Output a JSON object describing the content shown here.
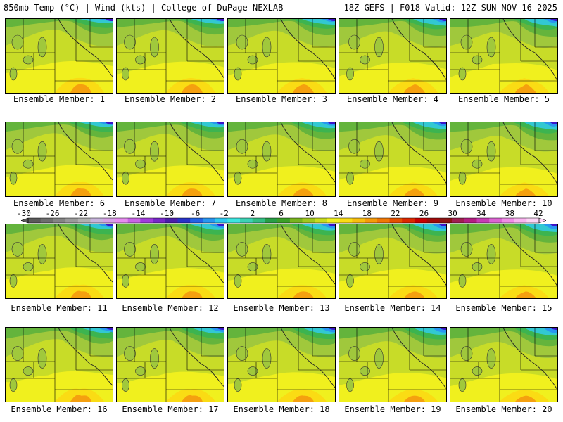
{
  "header": {
    "left": "850mb Temp (°C) | Wind (kts) | College of DuPage NEXLAB",
    "right": "18Z GEFS | F018 Valid: 12Z SUN NOV 16 2025"
  },
  "members": [
    {
      "label": "Ensemble Member: 1"
    },
    {
      "label": "Ensemble Member: 2"
    },
    {
      "label": "Ensemble Member: 3"
    },
    {
      "label": "Ensemble Member: 4"
    },
    {
      "label": "Ensemble Member: 5"
    },
    {
      "label": "Ensemble Member: 6"
    },
    {
      "label": "Ensemble Member: 7"
    },
    {
      "label": "Ensemble Member: 8"
    },
    {
      "label": "Ensemble Member: 9"
    },
    {
      "label": "Ensemble Member: 10"
    },
    {
      "label": "Ensemble Member: 11"
    },
    {
      "label": "Ensemble Member: 12"
    },
    {
      "label": "Ensemble Member: 13"
    },
    {
      "label": "Ensemble Member: 14"
    },
    {
      "label": "Ensemble Member: 15"
    },
    {
      "label": "Ensemble Member: 16"
    },
    {
      "label": "Ensemble Member: 17"
    },
    {
      "label": "Ensemble Member: 18"
    },
    {
      "label": "Ensemble Member: 19"
    },
    {
      "label": "Ensemble Member: 20"
    }
  ],
  "colorbar": {
    "labels": [
      "-30",
      "-26",
      "-22",
      "-18",
      "-14",
      "-10",
      "-6",
      "-2",
      "2",
      "6",
      "10",
      "14",
      "18",
      "22",
      "26",
      "30",
      "34",
      "38",
      "42"
    ],
    "colors": [
      "#5a5a5a",
      "#6e6e6e",
      "#848484",
      "#9a9a9a",
      "#b0b0b0",
      "#c8b4dc",
      "#d7a0e6",
      "#e68cf0",
      "#c864e6",
      "#a03cdc",
      "#7828c8",
      "#4b1eaa",
      "#2832c8",
      "#2364e6",
      "#2896f0",
      "#2ec8f0",
      "#3ce6e0",
      "#3cd2b4",
      "#32be82",
      "#289e46",
      "#3ca028",
      "#78b41e",
      "#a0c81e",
      "#c8dc1e",
      "#f0f01e",
      "#fadc14",
      "#f8be0f",
      "#f59b0a",
      "#f07805",
      "#e65000",
      "#dc2800",
      "#c80000",
      "#a00a0a",
      "#8c1414",
      "#a01e50",
      "#b41e82",
      "#c83cb4",
      "#dc64d2",
      "#f08ce6",
      "#fab4f0",
      "#fcd4f6"
    ]
  },
  "map_colors": {
    "cold_deep": "#3c14c8",
    "cold": "#2896f0",
    "cool": "#32c8d2",
    "mild_green": "#3cb450",
    "green": "#64b43c",
    "lime": "#a0c83c",
    "yellow_green": "#c8dc28",
    "yellow": "#f0f01e",
    "orange_yellow": "#fadc14",
    "orange": "#f5a00f"
  }
}
